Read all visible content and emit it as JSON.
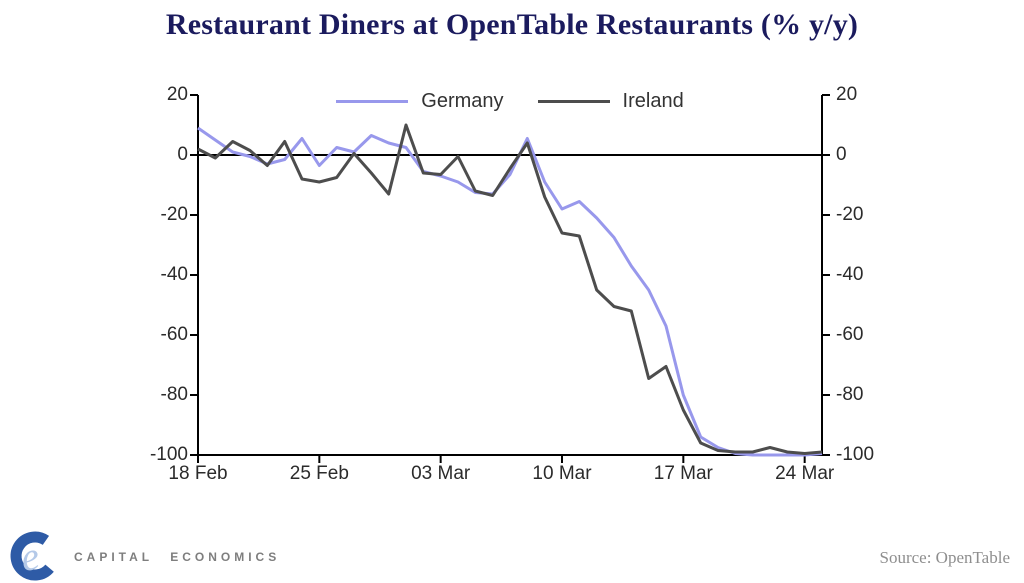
{
  "title": "Restaurant Diners at OpenTable Restaurants (% y/y)",
  "source_note": "Source: OpenTable",
  "branding": {
    "logo_text": "CAPITAL ECONOMICS",
    "logo_monogram": "e"
  },
  "colors": {
    "title_navy": "#1b1b5e",
    "axis_black": "#000000",
    "tick_label": "#2b2b2b",
    "source_gray": "#8e8e8e",
    "logo_blue": "#2e5ba6",
    "logo_light_blue": "#b4c9e8",
    "logo_text_gray": "#7e7e7e"
  },
  "chart_data": {
    "type": "line",
    "title": "Restaurant Diners at OpenTable Restaurants (% y/y)",
    "frequency": "daily",
    "start_label": "18 Feb",
    "ylim": [
      -100,
      20
    ],
    "grid": false,
    "legend_position": "top-center",
    "y_ticks": [
      20,
      0,
      -20,
      -40,
      -60,
      -80,
      -100
    ],
    "x_ticks": [
      {
        "label": "18 Feb",
        "day": 0
      },
      {
        "label": "25 Feb",
        "day": 7
      },
      {
        "label": "03 Mar",
        "day": 14
      },
      {
        "label": "10 Mar",
        "day": 21
      },
      {
        "label": "17 Mar",
        "day": 28
      },
      {
        "label": "24 Mar",
        "day": 35
      }
    ],
    "series": [
      {
        "name": "Germany",
        "color": "#9898ec",
        "values": [
          9,
          5,
          1,
          -0.5,
          -3,
          -1.5,
          5.5,
          -3.5,
          2.5,
          1,
          6.5,
          4,
          2.5,
          -5.5,
          -7,
          -9,
          -12.5,
          -13,
          -6.5,
          5.5,
          -9,
          -18,
          -15.5,
          -21,
          -27.5,
          -37,
          -45,
          -57,
          -80,
          -94,
          -97.5,
          -99.5,
          -100,
          -100,
          -100,
          -100,
          -99.5
        ]
      },
      {
        "name": "Ireland",
        "color": "#4d4d4d",
        "values": [
          2,
          -1,
          4.5,
          1.5,
          -3.5,
          4.5,
          -8,
          -9,
          -7.5,
          0.5,
          -6,
          -13,
          10,
          -6,
          -6.5,
          -0.5,
          -12,
          -13.5,
          -4.5,
          4,
          -14,
          -26,
          -27,
          -45,
          -50.5,
          -52,
          -74.5,
          -70.5,
          -85,
          -96,
          -98.5,
          -99,
          -99,
          -97.5,
          -99,
          -99.5,
          -99
        ]
      }
    ]
  }
}
